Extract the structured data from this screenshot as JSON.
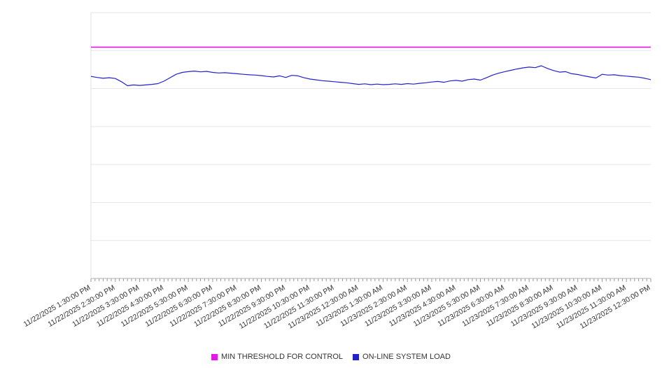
{
  "chart_data": {
    "type": "line",
    "title": "",
    "xlabel": "",
    "ylabel": "",
    "ylim": [
      0,
      100
    ],
    "grid": true,
    "grid_divisions": 7,
    "legend_position": "bottom",
    "x_tick_labels": [
      "11/22/2025 1:30:00 PM",
      "11/22/2025 2:30:00 PM",
      "11/22/2025 3:30:00 PM",
      "11/22/2025 4:30:00 PM",
      "11/22/2025 5:30:00 PM",
      "11/22/2025 6:30:00 PM",
      "11/22/2025 7:30:00 PM",
      "11/22/2025 8:30:00 PM",
      "11/22/2025 9:30:00 PM",
      "11/22/2025 10:30:00 PM",
      "11/22/2025 11:30:00 PM",
      "11/23/2025 12:30:00 AM",
      "11/23/2025 1:30:00 AM",
      "11/23/2025 2:30:00 AM",
      "11/23/2025 3:30:00 AM",
      "11/23/2025 4:30:00 AM",
      "11/23/2025 5:30:00 AM",
      "11/23/2025 6:30:00 AM",
      "11/23/2025 7:30:00 AM",
      "11/23/2025 8:30:00 AM",
      "11/23/2025 9:30:00 AM",
      "11/23/2025 10:30:00 AM",
      "11/23/2025 11:30:00 AM",
      "11/23/2025 12:30:00 PM"
    ],
    "series": [
      {
        "name": "MIN THRESHOLD FOR CONTROL",
        "type": "threshold-line",
        "color": "#e616e6",
        "value": 87
      },
      {
        "name": "ON-LINE SYSTEM LOAD",
        "type": "line",
        "color": "#2222cc",
        "values": [
          76.0,
          75.6,
          75.3,
          75.5,
          75.2,
          74.0,
          72.5,
          72.8,
          72.6,
          72.8,
          73.0,
          73.3,
          74.2,
          75.5,
          76.8,
          77.5,
          77.8,
          78.0,
          77.7,
          77.9,
          77.5,
          77.3,
          77.4,
          77.2,
          77.0,
          76.8,
          76.6,
          76.5,
          76.3,
          76.0,
          75.8,
          76.2,
          75.6,
          76.4,
          76.2,
          75.5,
          75.0,
          74.7,
          74.4,
          74.2,
          74.0,
          73.8,
          73.6,
          73.3,
          73.0,
          73.2,
          72.9,
          73.1,
          72.9,
          73.0,
          73.2,
          73.0,
          73.3,
          73.1,
          73.4,
          73.6,
          73.9,
          74.1,
          73.8,
          74.3,
          74.5,
          74.2,
          74.8,
          75.0,
          74.6,
          75.5,
          76.5,
          77.2,
          77.8,
          78.3,
          78.8,
          79.2,
          79.5,
          79.3,
          80.0,
          79.0,
          78.2,
          77.6,
          77.8,
          77.0,
          76.7,
          76.2,
          75.8,
          75.4,
          76.8,
          76.5,
          76.6,
          76.3,
          76.1,
          75.9,
          75.7,
          75.3,
          74.8
        ]
      }
    ]
  },
  "legend": {
    "items": [
      {
        "label": "MIN THRESHOLD FOR CONTROL",
        "color": "#e616e6"
      },
      {
        "label": "ON-LINE SYSTEM LOAD",
        "color": "#2222cc"
      }
    ]
  }
}
